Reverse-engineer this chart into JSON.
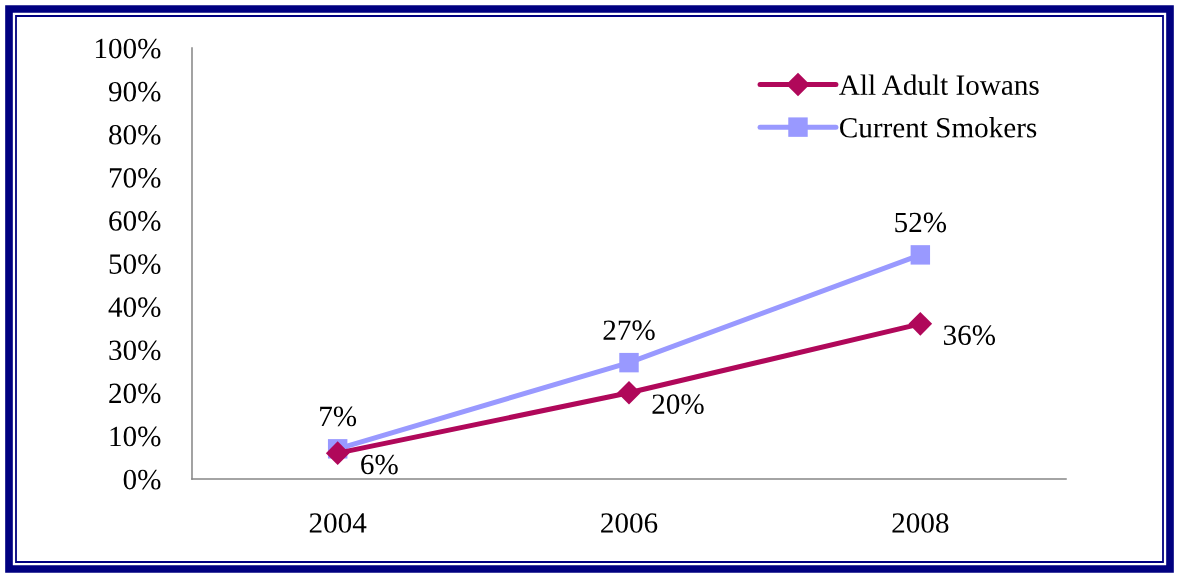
{
  "chart_data": {
    "type": "line",
    "categories": [
      "2004",
      "2006",
      "2008"
    ],
    "series": [
      {
        "name": "All Adult Iowans",
        "color": "#b0085a",
        "marker": "diamond",
        "values": [
          6,
          20,
          36
        ],
        "value_labels": [
          "6%",
          "20%",
          "36%"
        ]
      },
      {
        "name": "Current Smokers",
        "color": "#9999ff",
        "marker": "square",
        "values": [
          7,
          27,
          52
        ],
        "value_labels": [
          "7%",
          "27%",
          "52%"
        ]
      }
    ],
    "ylim": [
      0,
      100
    ],
    "yticks": [
      {
        "value": 0,
        "label": "0%"
      },
      {
        "value": 10,
        "label": "10%"
      },
      {
        "value": 20,
        "label": "20%"
      },
      {
        "value": 30,
        "label": "30%"
      },
      {
        "value": 40,
        "label": "40%"
      },
      {
        "value": 50,
        "label": "50%"
      },
      {
        "value": 60,
        "label": "60%"
      },
      {
        "value": 70,
        "label": "70%"
      },
      {
        "value": 80,
        "label": "80%"
      },
      {
        "value": 90,
        "label": "90%"
      },
      {
        "value": 100,
        "label": "100%"
      }
    ],
    "legend": "top right",
    "line_style": "solid"
  }
}
